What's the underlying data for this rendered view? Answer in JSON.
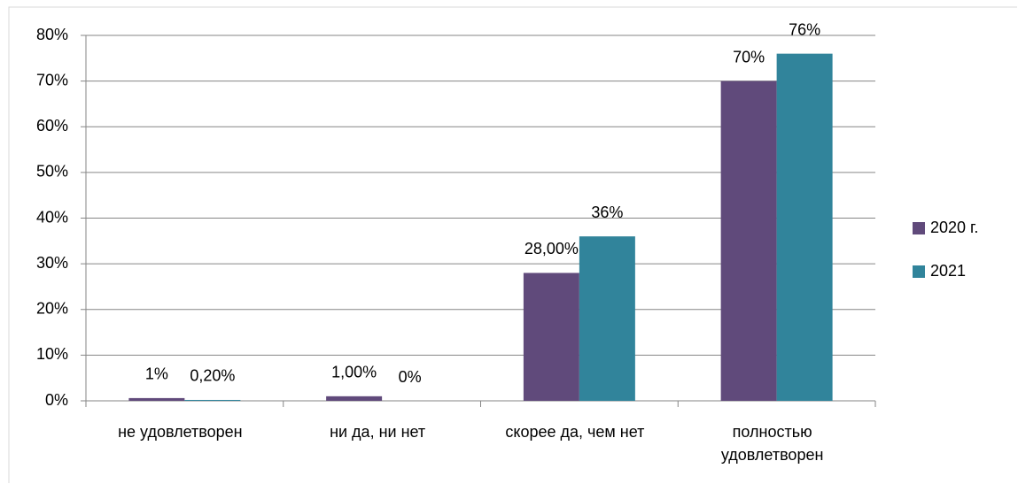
{
  "chart_data": {
    "type": "bar",
    "categories": [
      "не удовлетворен",
      "ни да, ни нет",
      "скорее да, чем нет",
      "полностью удовлетворен"
    ],
    "series": [
      {
        "name": "2020  г.",
        "color": "#604a7b",
        "values": [
          0.6,
          1,
          28,
          70
        ],
        "value_labels": [
          "1%",
          "1,00%",
          "28,00%",
          "70%"
        ]
      },
      {
        "name": "2021",
        "color": "#31849b",
        "values": [
          0.2,
          0,
          36,
          76
        ],
        "value_labels": [
          "0,20%",
          "0%",
          "36%",
          "76%"
        ]
      }
    ],
    "ylim": [
      0,
      80
    ],
    "yticks": [
      {
        "value": 0,
        "label": "0%"
      },
      {
        "value": 10,
        "label": "10%"
      },
      {
        "value": 20,
        "label": "20%"
      },
      {
        "value": 30,
        "label": "30%"
      },
      {
        "value": 40,
        "label": "40%"
      },
      {
        "value": 50,
        "label": "50%"
      },
      {
        "value": 60,
        "label": "60%"
      },
      {
        "value": 70,
        "label": "70%"
      },
      {
        "value": 80,
        "label": "80%"
      }
    ],
    "grid": true,
    "legend": "right"
  }
}
